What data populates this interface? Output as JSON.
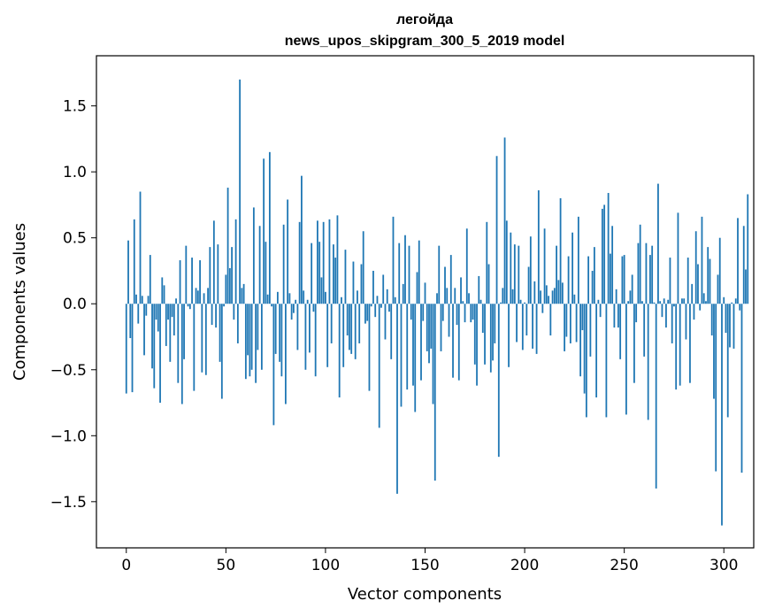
{
  "chart_data": {
    "type": "bar",
    "title": "легойда",
    "subtitle": "news_upos_skipgram_300_5_2019 model",
    "xlabel": "Vector components",
    "ylabel": "Components values",
    "xlim": [
      -15,
      315
    ],
    "ylim": [
      -1.85,
      1.88
    ],
    "xticks": [
      0,
      50,
      100,
      150,
      200,
      250,
      300
    ],
    "yticks": [
      -1.5,
      -1.0,
      -0.5,
      0.0,
      0.5,
      1.0,
      1.5
    ],
    "xtick_labels": [
      "0",
      "50",
      "100",
      "150",
      "200",
      "250",
      "300"
    ],
    "ytick_labels": [
      "−1.5",
      "−1.0",
      "−0.5",
      "0.0",
      "0.5",
      "1.0",
      "1.5"
    ],
    "grid": false,
    "bar_color": "#1f77b4",
    "values": [
      -0.68,
      0.48,
      -0.26,
      -0.67,
      0.64,
      0.07,
      -0.15,
      0.85,
      0.06,
      -0.39,
      -0.09,
      0.06,
      0.37,
      -0.49,
      -0.64,
      -0.12,
      -0.21,
      -0.75,
      0.2,
      0.14,
      -0.32,
      -0.12,
      -0.44,
      -0.1,
      -0.24,
      0.04,
      -0.6,
      0.33,
      -0.76,
      -0.42,
      0.44,
      -0.02,
      -0.04,
      0.35,
      -0.66,
      0.12,
      0.1,
      0.33,
      -0.52,
      0.08,
      -0.54,
      0.12,
      0.43,
      -0.16,
      0.63,
      -0.18,
      0.45,
      -0.44,
      -0.72,
      -0.02,
      0.22,
      0.88,
      0.27,
      0.43,
      -0.12,
      0.64,
      -0.3,
      1.7,
      0.12,
      0.15,
      -0.57,
      -0.39,
      -0.55,
      -0.5,
      0.73,
      -0.6,
      -0.35,
      0.59,
      -0.5,
      1.1,
      0.47,
      0.07,
      1.15,
      -0.02,
      -0.92,
      -0.38,
      0.09,
      -0.44,
      -0.55,
      0.6,
      -0.76,
      0.79,
      0.08,
      -0.12,
      -0.07,
      0.03,
      -0.35,
      0.62,
      0.97,
      0.1,
      -0.5,
      0.03,
      -0.37,
      0.46,
      -0.06,
      -0.55,
      0.63,
      0.47,
      0.2,
      0.62,
      0.09,
      -0.48,
      0.64,
      -0.3,
      0.45,
      0.35,
      0.67,
      -0.71,
      0.05,
      -0.48,
      0.41,
      -0.24,
      -0.35,
      -0.38,
      0.32,
      -0.42,
      0.1,
      -0.3,
      0.3,
      0.55,
      -0.15,
      -0.13,
      -0.66,
      -0.02,
      0.25,
      -0.1,
      0.06,
      -0.94,
      -0.03,
      0.22,
      -0.27,
      0.11,
      -0.06,
      -0.42,
      0.66,
      0.05,
      -1.44,
      0.46,
      -0.78,
      0.15,
      0.52,
      -0.65,
      0.44,
      -0.12,
      -0.62,
      -0.82,
      0.24,
      0.48,
      -0.58,
      -0.13,
      0.16,
      -0.36,
      -0.45,
      -0.34,
      -0.76,
      -1.34,
      0.08,
      0.44,
      -0.36,
      -0.13,
      0.28,
      0.12,
      -0.25,
      0.37,
      -0.56,
      0.12,
      -0.16,
      -0.58,
      0.2,
      0.02,
      -0.14,
      0.57,
      0.08,
      -0.14,
      -0.12,
      -0.46,
      -0.62,
      0.21,
      0.03,
      -0.22,
      -0.46,
      0.62,
      0.3,
      -0.52,
      -0.43,
      -0.3,
      1.12,
      -1.16,
      0.01,
      0.12,
      1.26,
      0.63,
      -0.48,
      0.54,
      0.11,
      0.45,
      -0.29,
      0.44,
      0.03,
      -0.35,
      0.01,
      -0.24,
      0.28,
      0.51,
      -0.34,
      0.17,
      -0.38,
      0.86,
      0.1,
      -0.07,
      0.57,
      0.14,
      0.06,
      -0.24,
      0.1,
      0.12,
      0.44,
      0.18,
      0.8,
      0.16,
      -0.36,
      -0.25,
      0.36,
      -0.3,
      0.54,
      0.07,
      -0.29,
      0.66,
      -0.55,
      -0.2,
      -0.68,
      -0.86,
      0.36,
      -0.4,
      0.25,
      0.43,
      -0.71,
      0.03,
      -0.1,
      0.72,
      0.75,
      -0.86,
      0.84,
      0.38,
      0.59,
      -0.18,
      0.11,
      -0.18,
      -0.42,
      0.36,
      0.37,
      -0.84,
      0.02,
      0.1,
      0.22,
      -0.6,
      -0.14,
      0.46,
      0.6,
      0.02,
      -0.4,
      0.46,
      -0.88,
      0.37,
      0.44,
      0.01,
      -1.4,
      0.91,
      0.02,
      -0.1,
      0.04,
      -0.18,
      0.03,
      0.35,
      -0.3,
      -0.02,
      -0.65,
      0.69,
      -0.62,
      0.04,
      0.04,
      -0.27,
      0.35,
      -0.6,
      0.15,
      -0.12,
      0.55,
      0.3,
      -0.05,
      0.66,
      0.08,
      0.02,
      0.43,
      0.34,
      -0.24,
      -0.72,
      -1.27,
      0.22,
      0.5,
      -1.68,
      0.05,
      -0.22,
      -0.86,
      -0.33,
      0.01,
      -0.34,
      0.04,
      0.65,
      -0.05,
      -1.28,
      0.59,
      0.26,
      0.83
    ]
  }
}
